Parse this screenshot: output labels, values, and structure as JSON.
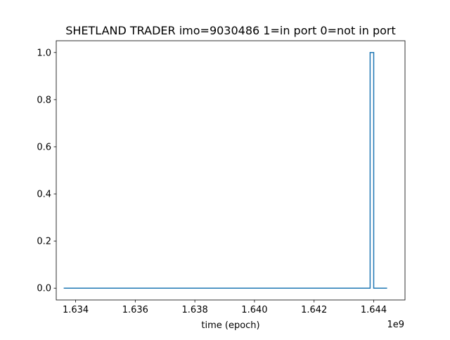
{
  "chart_data": {
    "type": "line",
    "title": "SHETLAND TRADER imo=9030486 1=in port 0=not in port",
    "xlabel": "time (epoch)",
    "ylabel": "",
    "x_offset_text": "1e9",
    "xlim": [
      1.63335,
      1.64505
    ],
    "ylim": [
      -0.05,
      1.05
    ],
    "x_ticks": [
      1.634,
      1.636,
      1.638,
      1.64,
      1.642,
      1.644
    ],
    "x_tick_labels": [
      "1.634",
      "1.636",
      "1.638",
      "1.640",
      "1.642",
      "1.644"
    ],
    "y_ticks": [
      0.0,
      0.2,
      0.4,
      0.6,
      0.8,
      1.0
    ],
    "y_tick_labels": [
      "0.0",
      "0.2",
      "0.4",
      "0.6",
      "0.8",
      "1.0"
    ],
    "grid": false,
    "legend": "none",
    "series": [
      {
        "color": "#1f77b4",
        "x": [
          1.6336,
          1.64388,
          1.64388,
          1.644,
          1.644,
          1.64445
        ],
        "y": [
          0,
          0,
          1,
          1,
          0,
          0
        ]
      }
    ]
  }
}
